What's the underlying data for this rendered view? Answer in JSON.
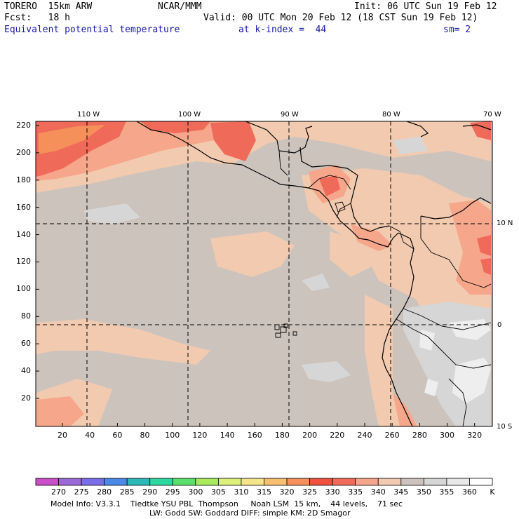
{
  "header": {
    "model": "TORERO  15km ARW",
    "org": "NCAR/MMM",
    "init": "Init: 06 UTC Sun 19 Feb 12",
    "fcst": "Fcst:   18 h",
    "valid": "Valid: 00 UTC Mon 20 Feb 12 (18 CST Sun 19 Feb 12)",
    "field": "Equivalent potential temperature",
    "level": "at k-index =  44",
    "smooth": "sm= 2"
  },
  "longitude_labels": [
    "110 W",
    "100 W",
    "90 W",
    "80 W",
    "70 W"
  ],
  "latitude_labels": [
    "10 N",
    "0",
    "10 S"
  ],
  "y_ticks": [
    "220",
    "200",
    "180",
    "160",
    "140",
    "120",
    "100",
    "80",
    "60",
    "40",
    "20"
  ],
  "x_ticks": [
    "20",
    "40",
    "60",
    "80",
    "100",
    "120",
    "140",
    "160",
    "180",
    "200",
    "220",
    "240",
    "260",
    "280",
    "300",
    "320"
  ],
  "colorbar": {
    "labels": [
      "270",
      "275",
      "280",
      "285",
      "290",
      "295",
      "300",
      "305",
      "310",
      "315",
      "320",
      "325",
      "330",
      "335",
      "340",
      "345",
      "350",
      "355",
      "360"
    ],
    "unit": "K",
    "colors": [
      "#c84fc8",
      "#9a6ad8",
      "#7a6ee8",
      "#4a8ae6",
      "#2ab8b8",
      "#2ad8a0",
      "#5ae06a",
      "#a6ea5a",
      "#dcf07a",
      "#f6e48a",
      "#f6c070",
      "#f6905a",
      "#f0503e",
      "#f06a5a",
      "#f6a68a",
      "#f2cab0",
      "#cdc3bd",
      "#d6d6d6",
      "#e8e8e8",
      "#ffffff"
    ]
  },
  "field_colors": {
    "base": "#cdc3bd",
    "c340": "#f2cab0",
    "c335": "#f6a68a",
    "c330": "#f06a5a",
    "c325": "#f6905a",
    "c350": "#d6d6d6",
    "c355": "#eeeeee"
  },
  "footer": {
    "line1": "Model Info: V3.3.1    Tiedtke YSU PBL  Thompson     Noah LSM  15 km,    44 levels,    71 sec",
    "line2": "LW: Godd SW: Goddard DIFF: simple KM: 2D Smagor"
  }
}
